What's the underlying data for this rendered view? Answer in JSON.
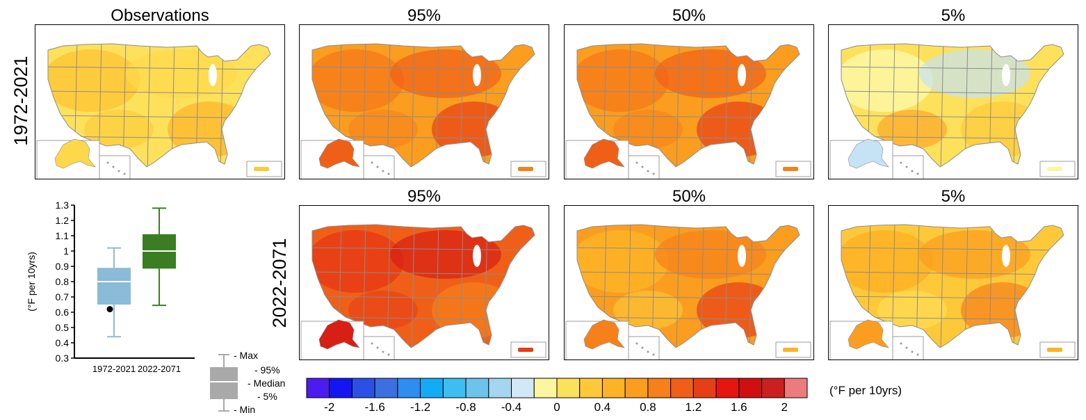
{
  "headers": {
    "obs": "Observations",
    "top_95": "95%",
    "top_50": "50%",
    "top_5": "5%",
    "bot_95": "95%",
    "bot_50": "50%",
    "bot_5": "5%"
  },
  "row_labels": {
    "top": "1972-2021",
    "bottom": "2022-2071"
  },
  "colors": {
    "map_palette": [
      "#fde15b",
      "#fec939",
      "#feb326",
      "#fb9d1e",
      "#f6801a",
      "#f05f18",
      "#e83e15",
      "#d71f14",
      "#ffffff",
      "#c5e3f4"
    ]
  },
  "maps": [
    {
      "id": "obs",
      "tone": "yellow"
    },
    {
      "id": "top95",
      "tone": "orange-red"
    },
    {
      "id": "top50",
      "tone": "orange-red"
    },
    {
      "id": "top5",
      "tone": "yellow-blue"
    },
    {
      "id": "bot95",
      "tone": "red"
    },
    {
      "id": "bot50",
      "tone": "orange"
    },
    {
      "id": "bot5",
      "tone": "yellow-orange"
    }
  ],
  "boxplot": {
    "ylabel": "(°F per 10yrs)",
    "ytick_labels": [
      "1.3",
      "1.2",
      "1.1",
      "1",
      "0.9",
      "0.8",
      "0.7",
      "0.6",
      "0.5",
      "0.4",
      "0.3"
    ],
    "category_labels": [
      "1972-2021",
      "2022-2071"
    ]
  },
  "box_legend": {
    "max": "- Max",
    "p95": "- 95%",
    "median": "- Median",
    "p5": "- 5%",
    "min": "- Min"
  },
  "colorbar": {
    "units": "(°F per 10yrs)",
    "tick_labels": [
      "-2",
      "-1.6",
      "-1.2",
      "-0.8",
      "-0.4",
      "0",
      "0.4",
      "0.8",
      "1.2",
      "1.6",
      "2"
    ],
    "colors": [
      "#4b1cf0",
      "#1316f0",
      "#2b50e6",
      "#3c6fe0",
      "#2d8df0",
      "#14abf5",
      "#3dbdf0",
      "#6cc4ec",
      "#a4d6ef",
      "#d2e9f5",
      "#fdf6a0",
      "#fde15b",
      "#fec939",
      "#feb326",
      "#fb9d1e",
      "#f6801a",
      "#f05f18",
      "#e83e15",
      "#e6150f",
      "#d01010",
      "#cc2020",
      "#ec7b7b"
    ]
  },
  "chart_data": [
    {
      "type": "box",
      "ylabel": "(°F per 10yrs)",
      "ylim": [
        0.3,
        1.3
      ],
      "categories": [
        "1972-2021",
        "2022-2071"
      ],
      "series": [
        {
          "category": "1972-2021",
          "min": 0.44,
          "p5": 0.65,
          "median": 0.8,
          "p95": 0.89,
          "max": 1.02,
          "observed": 0.62,
          "color": "#8abbd9"
        },
        {
          "category": "2022-2071",
          "min": 0.645,
          "p5": 0.885,
          "median": 1.0,
          "p95": 1.11,
          "max": 1.28,
          "color": "#3a7d22"
        }
      ]
    }
  ]
}
